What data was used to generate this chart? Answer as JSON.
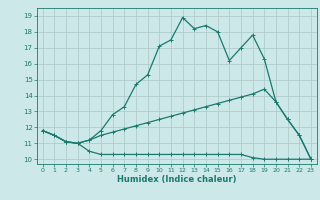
{
  "xlabel": "Humidex (Indice chaleur)",
  "bg_color": "#cce8e8",
  "line_color": "#1a7a6e",
  "grid_color": "#b8d8d8",
  "x_ticks": [
    0,
    1,
    2,
    3,
    4,
    5,
    6,
    7,
    8,
    9,
    10,
    11,
    12,
    13,
    14,
    15,
    16,
    17,
    18,
    19,
    20,
    21,
    22,
    23
  ],
  "y_ticks": [
    10,
    11,
    12,
    13,
    14,
    15,
    16,
    17,
    18,
    19
  ],
  "xlim": [
    -0.5,
    23.5
  ],
  "ylim": [
    9.7,
    19.5
  ],
  "line1_x": [
    0,
    1,
    2,
    3,
    4,
    5,
    6,
    7,
    8,
    9,
    10,
    11,
    12,
    13,
    14,
    15,
    16,
    17,
    18,
    19,
    20,
    21,
    22,
    23
  ],
  "line1_y": [
    11.8,
    11.5,
    11.1,
    11.0,
    11.2,
    11.8,
    12.8,
    13.3,
    14.7,
    15.3,
    17.1,
    17.5,
    18.9,
    18.2,
    18.4,
    18.0,
    16.2,
    17.0,
    17.8,
    16.3,
    13.6,
    12.5,
    11.5,
    10.0
  ],
  "line2_x": [
    0,
    1,
    2,
    3,
    4,
    5,
    6,
    7,
    8,
    9,
    10,
    11,
    12,
    13,
    14,
    15,
    16,
    17,
    18,
    19,
    20,
    21,
    22,
    23
  ],
  "line2_y": [
    11.8,
    11.5,
    11.1,
    11.0,
    11.2,
    11.5,
    11.7,
    11.9,
    12.1,
    12.3,
    12.5,
    12.7,
    12.9,
    13.1,
    13.3,
    13.5,
    13.7,
    13.9,
    14.1,
    14.4,
    13.6,
    12.5,
    11.5,
    10.0
  ],
  "line3_x": [
    0,
    1,
    2,
    3,
    4,
    5,
    6,
    7,
    8,
    9,
    10,
    11,
    12,
    13,
    14,
    15,
    16,
    17,
    18,
    19,
    20,
    21,
    22,
    23
  ],
  "line3_y": [
    11.8,
    11.5,
    11.1,
    11.0,
    10.5,
    10.3,
    10.3,
    10.3,
    10.3,
    10.3,
    10.3,
    10.3,
    10.3,
    10.3,
    10.3,
    10.3,
    10.3,
    10.3,
    10.1,
    10.0,
    10.0,
    10.0,
    10.0,
    10.0
  ]
}
